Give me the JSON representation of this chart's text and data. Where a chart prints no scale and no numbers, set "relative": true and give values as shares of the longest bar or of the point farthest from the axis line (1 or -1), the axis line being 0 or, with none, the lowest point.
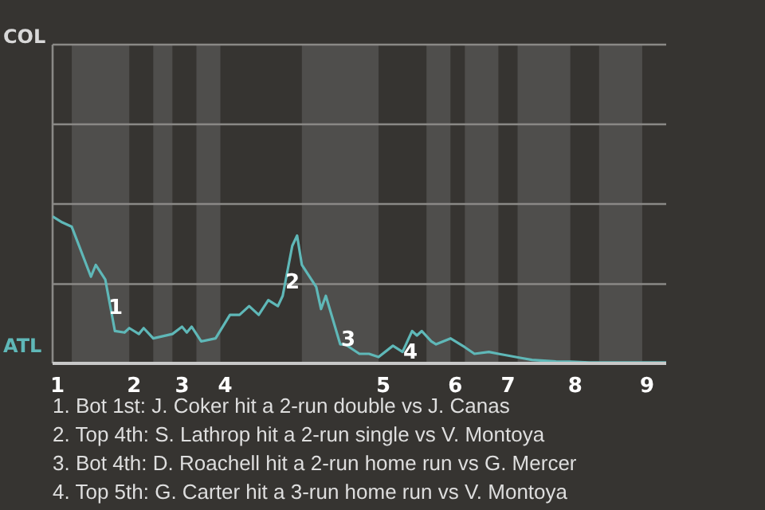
{
  "chart_data": {
    "type": "line",
    "relative": true,
    "marker": "none",
    "categories": [
      null,
      "1",
      null,
      null,
      null,
      null,
      null,
      null,
      null,
      null,
      null,
      null,
      null,
      null,
      null,
      null,
      null,
      "2",
      null,
      null,
      null,
      null,
      null,
      null,
      null,
      null,
      null,
      "3",
      null,
      null,
      null,
      null,
      null,
      null,
      null,
      null,
      "4",
      null,
      null,
      null,
      null,
      null,
      null,
      null,
      null,
      null,
      null,
      null,
      null,
      null,
      null,
      null,
      null,
      null,
      null,
      null,
      null,
      null,
      null,
      null,
      null,
      null,
      null,
      null,
      null,
      null,
      null,
      null,
      null,
      "5",
      null,
      null,
      null,
      null,
      null,
      null,
      null,
      null,
      null,
      null,
      null,
      null,
      null,
      null,
      "6",
      null,
      null,
      null,
      null,
      null,
      null,
      null,
      null,
      null,
      null,
      "7",
      null,
      null,
      null,
      null,
      null,
      null,
      null,
      null,
      null,
      null,
      null,
      null,
      null,
      "8",
      null,
      null,
      null,
      null,
      null,
      null,
      null,
      null,
      null,
      null,
      null,
      null,
      null,
      null,
      "9",
      null,
      null,
      null,
      null
    ],
    "series": [
      {
        "color": "#5fb8b8",
        "values": [
          1,
          null,
          0.96,
          null,
          0.93,
          null,
          null,
          null,
          0.59,
          0.67,
          null,
          0.57,
          null,
          0.22,
          null,
          0.21,
          0.24,
          null,
          0.2,
          0.24,
          null,
          0.17,
          null,
          null,
          null,
          0.2,
          null,
          0.25,
          0.21,
          0.25,
          null,
          0.15,
          null,
          null,
          0.17,
          null,
          null,
          0.33,
          null,
          0.33,
          null,
          0.39,
          null,
          0.33,
          null,
          0.43,
          null,
          0.39,
          0.46,
          null,
          0.8,
          0.87,
          0.67,
          null,
          null,
          0.52,
          0.37,
          0.46,
          null,
          null,
          0.13,
          0.13,
          null,
          null,
          0.065,
          null,
          0.065,
          null,
          0.043,
          null,
          null,
          0.12,
          null,
          0.078,
          null,
          0.22,
          0.19,
          0.22,
          null,
          0.15,
          0.13,
          null,
          null,
          0.17,
          null,
          null,
          0.11,
          null,
          0.065,
          null,
          null,
          0.078,
          null,
          0.065,
          null,
          null,
          null,
          null,
          0.035,
          null,
          0.024,
          null,
          null,
          null,
          null,
          0.013,
          null,
          null,
          0.011,
          null,
          null,
          null,
          0.0065,
          null,
          null,
          null,
          null,
          null,
          null,
          null,
          null,
          null,
          null,
          null,
          null,
          null,
          null,
          null,
          0.0065
        ]
      }
    ],
    "ref_lines": [
      {
        "axis": "y",
        "value": 0.54,
        "color": "#8a8986"
      }
    ],
    "annotations": [
      "COL",
      "ATL",
      "1",
      "2",
      "3",
      "4",
      "1. Bot 1st: J. Coker hit a 2-run double vs J. Canas",
      "2. Top 4th: S. Lathrop hit a 2-run single vs V. Montoya",
      "3. Bot 4th: D. Roachell hit a 2-run home run vs G. Mercer",
      "4. Top 5th: G. Carter hit a 3-run home run vs V. Montoya"
    ]
  }
}
